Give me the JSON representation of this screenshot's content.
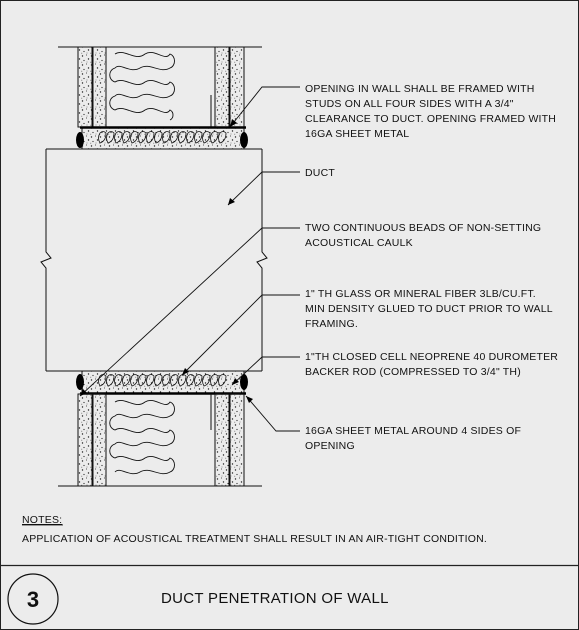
{
  "callouts": [
    {
      "lines": [
        "OPENING IN WALL SHALL BE FRAMED WITH",
        "STUDS ON ALL FOUR SIDES WITH A 3/4\"",
        "CLEARANCE TO DUCT. OPENING FRAMED WITH",
        "16GA SHEET METAL"
      ]
    },
    {
      "lines": [
        "DUCT"
      ]
    },
    {
      "lines": [
        "TWO CONTINUOUS BEADS OF NON-SETTING",
        "ACOUSTICAL CAULK"
      ]
    },
    {
      "lines": [
        "1\" TH GLASS OR MINERAL FIBER 3LB/CU.FT.",
        "MIN DENSITY GLUED TO DUCT PRIOR TO WALL",
        "FRAMING."
      ]
    },
    {
      "lines": [
        "1\"TH CLOSED CELL NEOPRENE 40 DUROMETER",
        "BACKER ROD (COMPRESSED TO 3/4\" TH)"
      ]
    },
    {
      "lines": [
        "16GA SHEET METAL AROUND 4 SIDES OF",
        "OPENING"
      ]
    }
  ],
  "notes": {
    "heading": "NOTES:",
    "text": "APPLICATION OF ACOUSTICAL TREATMENT SHALL RESULT IN AN AIR-TIGHT CONDITION."
  },
  "title_block": {
    "number": "3",
    "title": "DUCT PENETRATION OF WALL"
  }
}
